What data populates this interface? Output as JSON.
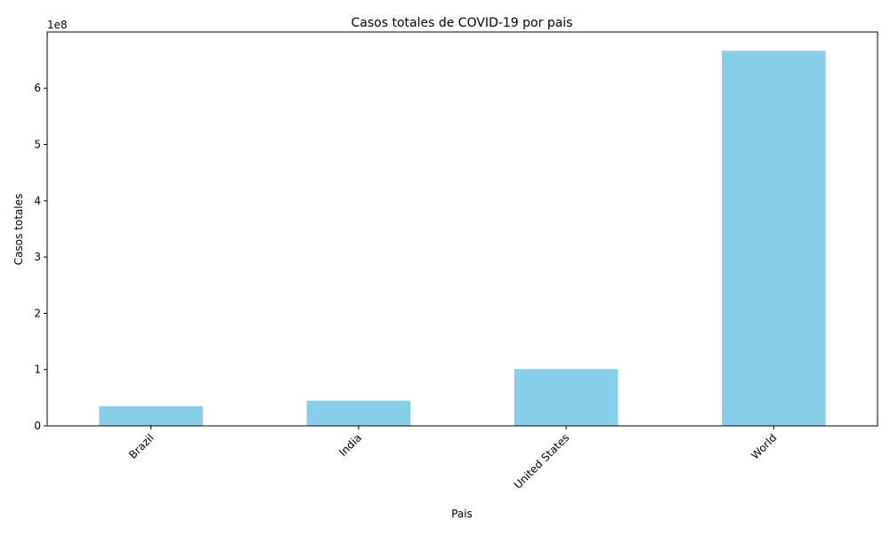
{
  "chart_data": {
    "type": "bar",
    "title": "Casos totales de COVID-19 por pais",
    "xlabel": "Pais",
    "ylabel": "Casos totales",
    "categories": [
      "Brazil",
      "India",
      "United States",
      "World"
    ],
    "values": [
      35000000,
      44700000,
      100800000,
      666500000
    ],
    "ylim": [
      0,
      699825000
    ],
    "yticks": [
      0,
      100000000,
      200000000,
      300000000,
      400000000,
      500000000,
      600000000
    ],
    "ytick_labels": [
      "0",
      "1",
      "2",
      "3",
      "4",
      "5",
      "6"
    ],
    "offset_text": "1e8",
    "bar_color": "#87ceeb",
    "grid": false,
    "xtick_rotation": 45
  }
}
